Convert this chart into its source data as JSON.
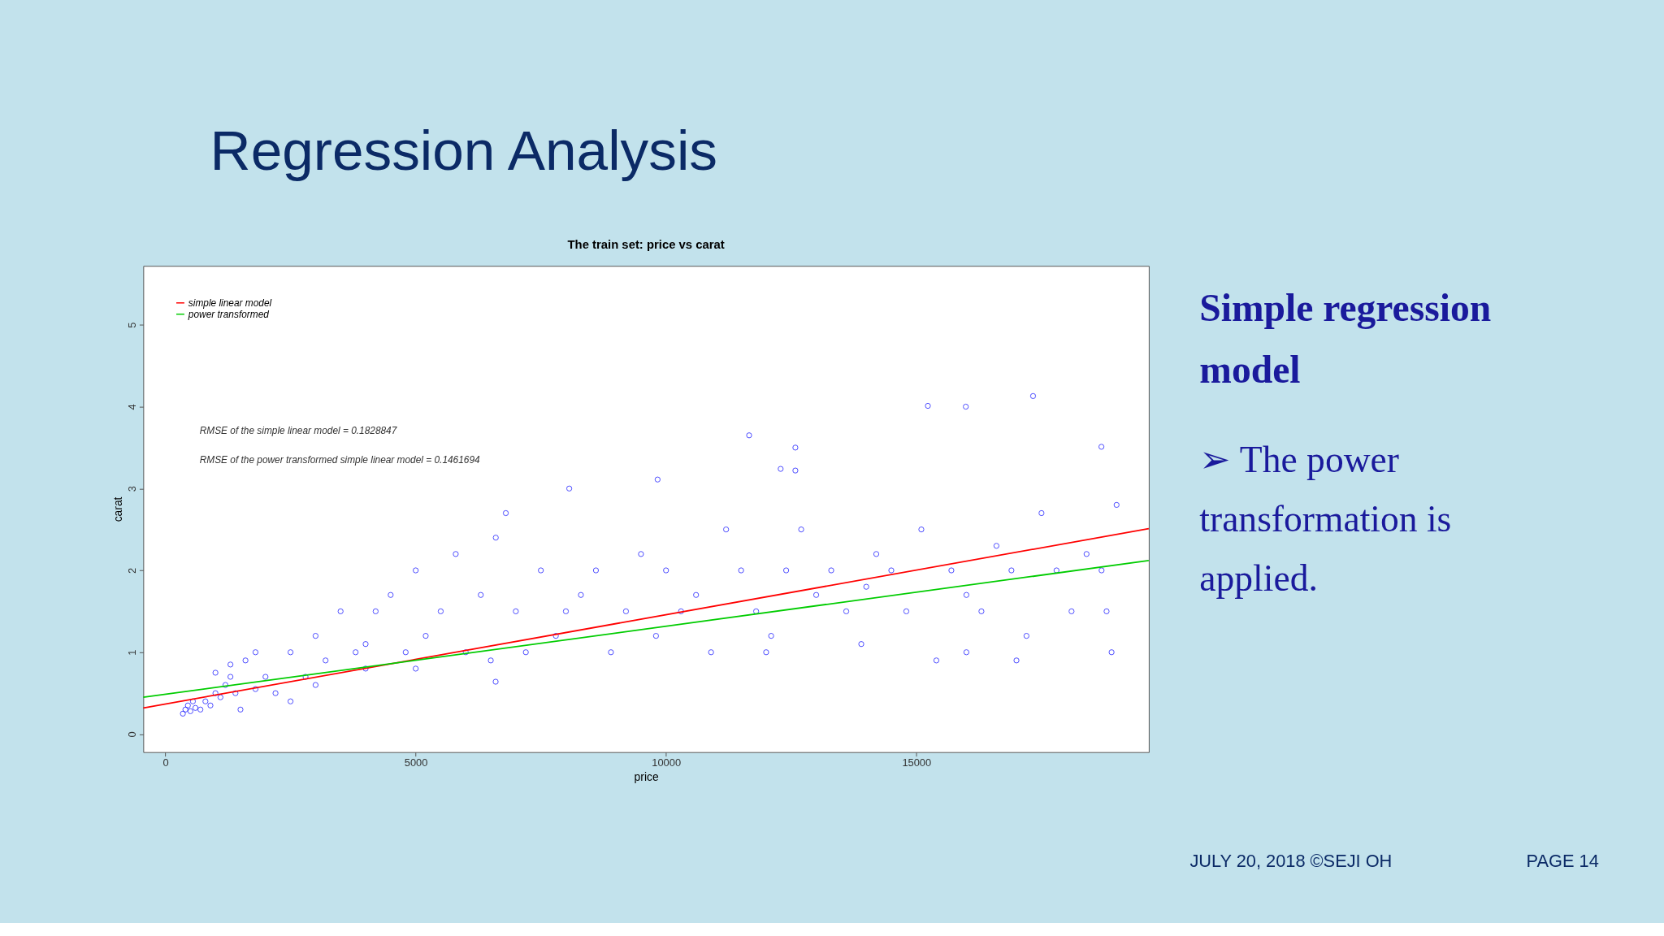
{
  "chart_data": {
    "type": "scatter",
    "title": "The train set: price vs carat",
    "xlabel": "price",
    "ylabel": "carat",
    "xlim": [
      -441,
      19643
    ],
    "xticks": [
      0,
      5000,
      10000,
      15000
    ],
    "ylim": [
      -0.22,
      5.72
    ],
    "yticks": [
      0,
      1,
      2,
      3,
      4,
      5
    ],
    "grid": false,
    "legend": "top left",
    "series": [
      {
        "marker": "circle",
        "color": "#0000ff",
        "x": [
          350,
          400,
          450,
          500,
          550,
          600,
          700,
          800,
          900,
          1000,
          1100,
          1200,
          1300,
          1400,
          1500,
          1300,
          1000,
          1600,
          1800,
          2000,
          2200,
          2500,
          2800,
          3000,
          3200,
          3500,
          3800,
          4000,
          4200,
          4500,
          4800,
          5000,
          5200,
          5500,
          5800,
          6000,
          6300,
          6600,
          6800,
          7000,
          7200,
          7500,
          7800,
          8000,
          8300,
          8600,
          8900,
          9200,
          9500,
          9800,
          10000,
          10300,
          10600,
          10900,
          11200,
          11500,
          11800,
          12100,
          12400,
          12700,
          13000,
          13300,
          13600,
          13900,
          14200,
          14500,
          14800,
          15100,
          15400,
          15700,
          16000,
          16300,
          16600,
          16900,
          17200,
          17500,
          17800,
          18100,
          18400,
          18700,
          18900,
          19000,
          18800,
          17000,
          16000,
          14000,
          12000,
          6500,
          3000,
          2500,
          1800,
          4000,
          5000,
          15231,
          15988,
          17332,
          11660,
          12584,
          12290,
          12584,
          18697,
          8067,
          9832,
          6597
        ],
        "values": [
          0.25,
          0.3,
          0.35,
          0.28,
          0.4,
          0.32,
          0.3,
          0.4,
          0.35,
          0.5,
          0.45,
          0.6,
          0.7,
          0.5,
          0.3,
          0.85,
          0.75,
          0.9,
          1.0,
          0.7,
          0.5,
          1.0,
          0.7,
          1.2,
          0.9,
          1.5,
          1.0,
          0.8,
          1.5,
          1.7,
          1.0,
          2.0,
          1.2,
          1.5,
          2.2,
          1.0,
          1.7,
          2.4,
          2.7,
          1.5,
          1.0,
          2.0,
          1.2,
          1.5,
          1.7,
          2.0,
          1.0,
          1.5,
          2.2,
          1.2,
          2.0,
          1.5,
          1.7,
          1.0,
          2.5,
          2.0,
          1.5,
          1.2,
          2.0,
          2.5,
          1.7,
          2.0,
          1.5,
          1.1,
          2.2,
          2.0,
          1.5,
          2.5,
          0.9,
          2.0,
          1.7,
          1.5,
          2.3,
          2.0,
          1.2,
          2.7,
          2.0,
          1.5,
          2.2,
          2.0,
          1.0,
          2.8,
          1.5,
          0.9,
          1.0,
          1.8,
          1.0,
          0.9,
          0.6,
          0.4,
          0.55,
          1.1,
          0.8,
          4.01,
          4.0,
          4.13,
          3.65,
          3.5,
          3.24,
          3.22,
          3.51,
          3.0,
          3.11,
          0.64
        ]
      },
      {
        "type": "line",
        "name": "simple linear model",
        "color": "#ff0000",
        "x": [
          -441,
          19643
        ],
        "values": [
          0.32,
          2.51
        ]
      },
      {
        "type": "line",
        "name": "power transformed",
        "color": "#00cc00",
        "x": [
          -441,
          19643
        ],
        "values": [
          0.45,
          2.12
        ]
      }
    ],
    "annotations": [
      "RMSE of the simple linear model = 0.1828847",
      "RMSE of the power transformed simple linear model = 0.1461694",
      "Regression Analysis",
      "Simple regression model",
      "➢ The  power transformation is applied.",
      "JULY 20, 2018 ©SEJI OH",
      "PAGE 14"
    ]
  }
}
